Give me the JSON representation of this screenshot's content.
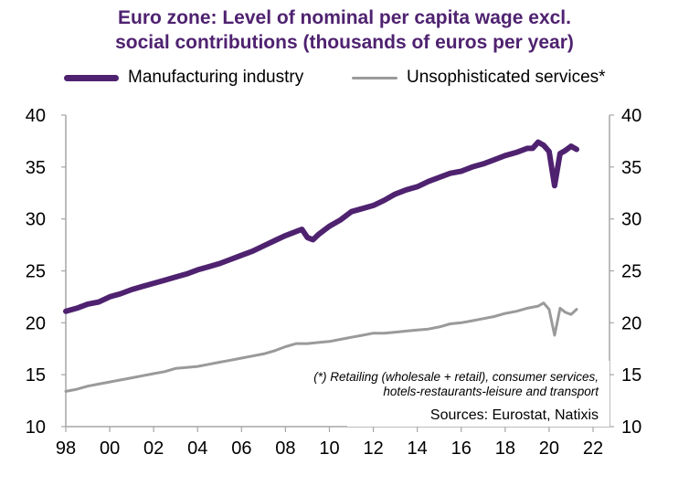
{
  "chart_data": {
    "type": "line",
    "title_line1": "Euro zone: Level of nominal per capita wage excl.",
    "title_line2": "social contributions (thousands of euros per year)",
    "xlabel": "",
    "ylabel": "",
    "xlim": [
      1998,
      2023
    ],
    "ylim": [
      10,
      40
    ],
    "y_ticks": [
      10,
      15,
      20,
      25,
      30,
      35,
      40
    ],
    "x_ticks": [
      1998,
      2000,
      2002,
      2004,
      2006,
      2008,
      2010,
      2012,
      2014,
      2016,
      2018,
      2020,
      2022
    ],
    "x_tick_labels": [
      "98",
      "00",
      "02",
      "04",
      "06",
      "08",
      "10",
      "12",
      "14",
      "16",
      "18",
      "20",
      "22"
    ],
    "right_axis": true,
    "grid": false,
    "legend_position": "top",
    "series": [
      {
        "name": "Manufacturing industry",
        "color": "#4f2270",
        "x": [
          1998.0,
          1998.5,
          1999.0,
          1999.5,
          2000.0,
          2000.5,
          2001.0,
          2001.5,
          2002.0,
          2002.5,
          2003.0,
          2003.5,
          2004.0,
          2004.5,
          2005.0,
          2005.5,
          2006.0,
          2006.5,
          2007.0,
          2007.5,
          2008.0,
          2008.5,
          2008.75,
          2009.0,
          2009.25,
          2009.5,
          2010.0,
          2010.5,
          2011.0,
          2011.5,
          2012.0,
          2012.5,
          2013.0,
          2013.5,
          2014.0,
          2014.5,
          2015.0,
          2015.5,
          2016.0,
          2016.5,
          2017.0,
          2017.5,
          2018.0,
          2018.5,
          2019.0,
          2019.25,
          2019.5,
          2019.75,
          2020.0,
          2020.25,
          2020.5,
          2020.75,
          2021.0,
          2021.25
        ],
        "values": [
          21.1,
          21.4,
          21.8,
          22.0,
          22.5,
          22.8,
          23.2,
          23.5,
          23.8,
          24.1,
          24.4,
          24.7,
          25.1,
          25.4,
          25.7,
          26.1,
          26.5,
          26.9,
          27.4,
          27.9,
          28.4,
          28.8,
          29.0,
          28.2,
          28.0,
          28.5,
          29.3,
          29.9,
          30.7,
          31.0,
          31.3,
          31.8,
          32.4,
          32.8,
          33.1,
          33.6,
          34.0,
          34.4,
          34.6,
          35.0,
          35.3,
          35.7,
          36.1,
          36.4,
          36.8,
          36.8,
          37.4,
          37.1,
          36.5,
          33.2,
          36.3,
          36.6,
          37.0,
          36.7
        ]
      },
      {
        "name": "Unsophisticated services*",
        "color": "#9a9a9a",
        "x": [
          1998.0,
          1998.5,
          1999.0,
          1999.5,
          2000.0,
          2000.5,
          2001.0,
          2001.5,
          2002.0,
          2002.5,
          2003.0,
          2003.5,
          2004.0,
          2004.5,
          2005.0,
          2005.5,
          2006.0,
          2006.5,
          2007.0,
          2007.5,
          2008.0,
          2008.5,
          2009.0,
          2009.5,
          2010.0,
          2010.5,
          2011.0,
          2011.5,
          2012.0,
          2012.5,
          2013.0,
          2013.5,
          2014.0,
          2014.5,
          2015.0,
          2015.5,
          2016.0,
          2016.5,
          2017.0,
          2017.5,
          2018.0,
          2018.5,
          2019.0,
          2019.5,
          2019.75,
          2020.0,
          2020.25,
          2020.5,
          2020.75,
          2021.0,
          2021.25
        ],
        "values": [
          13.4,
          13.6,
          13.9,
          14.1,
          14.3,
          14.5,
          14.7,
          14.9,
          15.1,
          15.3,
          15.6,
          15.7,
          15.8,
          16.0,
          16.2,
          16.4,
          16.6,
          16.8,
          17.0,
          17.3,
          17.7,
          18.0,
          18.0,
          18.1,
          18.2,
          18.4,
          18.6,
          18.8,
          19.0,
          19.0,
          19.1,
          19.2,
          19.3,
          19.4,
          19.6,
          19.9,
          20.0,
          20.2,
          20.4,
          20.6,
          20.9,
          21.1,
          21.4,
          21.6,
          21.9,
          21.3,
          18.8,
          21.4,
          21.0,
          20.8,
          21.3
        ]
      }
    ],
    "annotations": {
      "note_line1": "(*) Retailing (wholesale + retail), consumer services,",
      "note_line2": "hotels-restaurants-leisure and transport",
      "source": "Sources: Eurostat, Natixis"
    }
  }
}
